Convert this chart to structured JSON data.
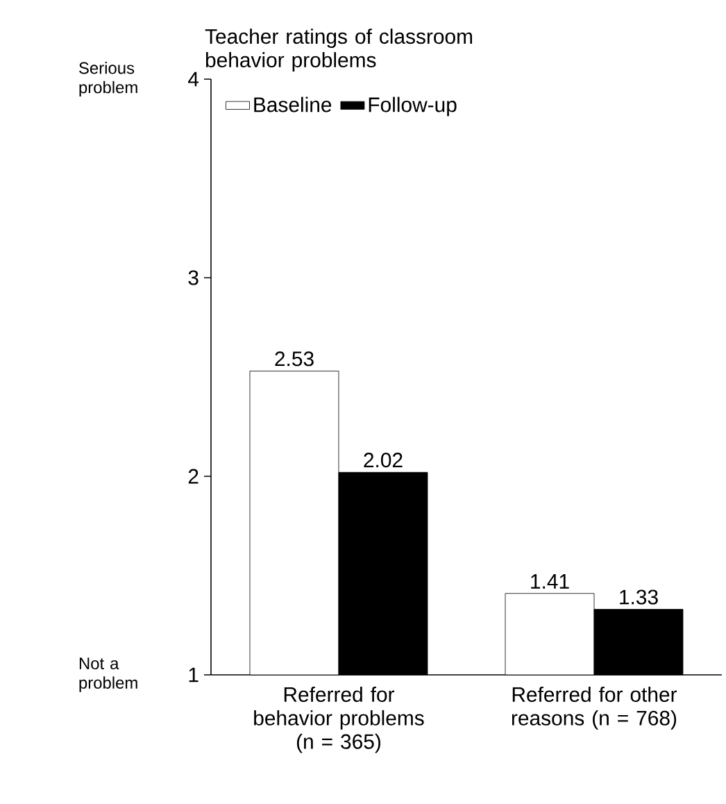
{
  "chart_data": {
    "type": "bar",
    "title": "Teacher ratings of classroom behavior problems",
    "categories": [
      "Referred for behavior problems (n = 365)",
      "Referred for other reasons (n = 768)"
    ],
    "series": [
      {
        "name": "Baseline",
        "color": "#ffffff",
        "values": [
          2.53,
          1.41
        ]
      },
      {
        "name": "Follow-up",
        "color": "#000000",
        "values": [
          2.02,
          1.33
        ]
      }
    ],
    "ylim": [
      1,
      4
    ],
    "yticks": [
      1,
      2,
      3,
      4
    ],
    "grid": false,
    "legend": "top left",
    "data_labels": true,
    "annotations": [
      "Serious problem",
      "Not a problem"
    ]
  }
}
